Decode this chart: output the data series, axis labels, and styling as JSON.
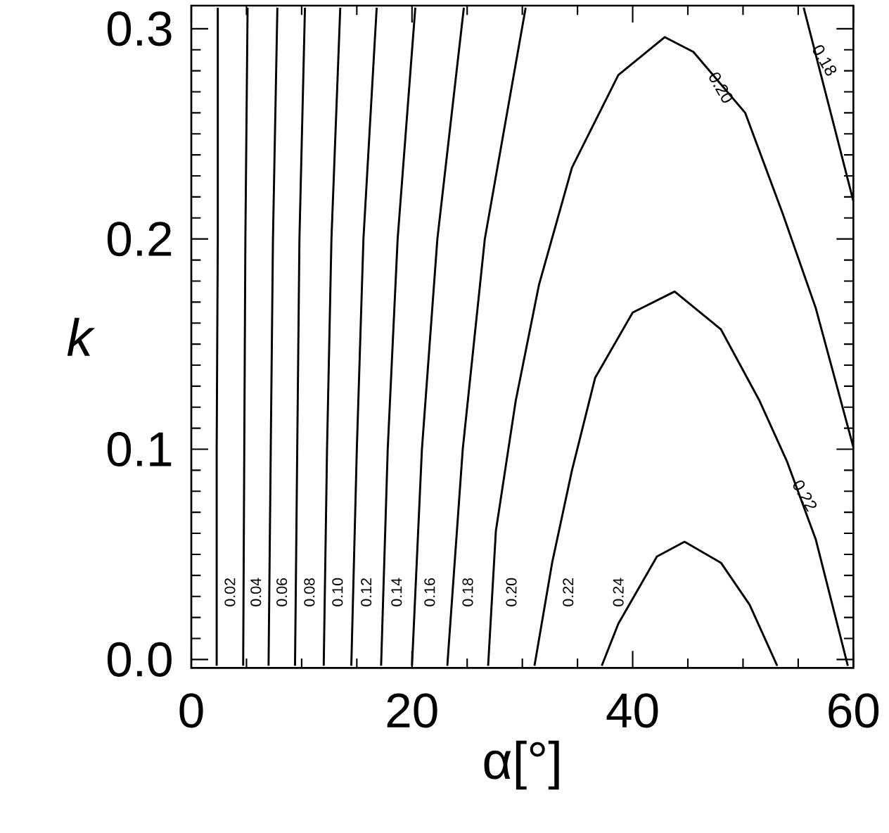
{
  "chart_data": {
    "type": "line",
    "xlabel": "α[°]",
    "ylabel": "k",
    "xlim": [
      0,
      60
    ],
    "ylim": [
      -0.004,
      0.311
    ],
    "xticks": [
      0,
      20,
      40,
      60
    ],
    "yticks": [
      {
        "value": 0,
        "label": "0.0"
      },
      0.1,
      0.2,
      0.3
    ],
    "series": [
      {
        "name": "0.02",
        "color": "#000000",
        "x": [
          2.3,
          2.3,
          2.4,
          2.4
        ],
        "values": [
          -0.003,
          0.1,
          0.2,
          0.31
        ]
      },
      {
        "name": "0.04",
        "color": "#000000",
        "x": [
          4.7,
          4.8,
          4.9,
          5.1
        ],
        "values": [
          -0.003,
          0.1,
          0.2,
          0.31
        ]
      },
      {
        "name": "0.06",
        "color": "#000000",
        "x": [
          7.0,
          7.2,
          7.4,
          7.8
        ],
        "values": [
          -0.003,
          0.1,
          0.2,
          0.31
        ]
      },
      {
        "name": "0.08",
        "color": "#000000",
        "x": [
          9.4,
          9.6,
          9.8,
          10.3
        ],
        "values": [
          -0.003,
          0.1,
          0.2,
          0.31
        ]
      },
      {
        "name": "0.10",
        "color": "#000000",
        "x": [
          12.0,
          12.3,
          12.7,
          13.5
        ],
        "values": [
          -0.003,
          0.1,
          0.2,
          0.31
        ]
      },
      {
        "name": "0.12",
        "color": "#000000",
        "x": [
          14.5,
          15.0,
          15.6,
          16.8
        ],
        "values": [
          -0.003,
          0.1,
          0.2,
          0.31
        ]
      },
      {
        "name": "0.14",
        "color": "#000000",
        "x": [
          17.2,
          17.8,
          18.7,
          20.3
        ],
        "values": [
          -0.003,
          0.1,
          0.2,
          0.31
        ]
      },
      {
        "name": "0.16",
        "color": "#000000",
        "x": [
          20.0,
          20.9,
          22.3,
          24.7
        ],
        "values": [
          -0.003,
          0.1,
          0.2,
          0.31
        ]
      },
      {
        "name": "0.18",
        "color": "#000000",
        "x": [
          23.2,
          24.6,
          26.6,
          30.3,
          null,
          55.5,
          57.8,
          60.0
        ],
        "values": [
          -0.003,
          0.1,
          0.2,
          0.31,
          null,
          0.31,
          0.263,
          0.218
        ]
      },
      {
        "name": "0.20",
        "color": "#000000",
        "x": [
          26.9,
          27.6,
          29.4,
          31.5,
          34.5,
          38.7,
          42.9,
          45.5,
          50.2,
          53.6,
          56.6,
          60.0
        ],
        "values": [
          -0.003,
          0.061,
          0.123,
          0.178,
          0.234,
          0.278,
          0.296,
          0.289,
          0.26,
          0.212,
          0.167,
          0.101
        ]
      },
      {
        "name": "0.22",
        "color": "#000000",
        "x": [
          31.1,
          32.7,
          34.5,
          36.6,
          40.0,
          43.8,
          48.0,
          51.5,
          54.0,
          56.6,
          59.5
        ],
        "values": [
          -0.003,
          0.046,
          0.09,
          0.134,
          0.165,
          0.175,
          0.157,
          0.123,
          0.094,
          0.057,
          -0.003
        ]
      },
      {
        "name": "0.24",
        "color": "#000000",
        "x": [
          37.2,
          38.7,
          42.2,
          44.7,
          48.0,
          50.6,
          53.1
        ],
        "values": [
          -0.003,
          0.017,
          0.049,
          0.056,
          0.046,
          0.026,
          -0.003
        ]
      }
    ],
    "annotations": [
      {
        "text": "0.18",
        "x": 57.4,
        "y": 0.285
      },
      {
        "text": "0.20",
        "x": 48.0,
        "y": 0.272
      },
      {
        "text": "0.22",
        "x": 55.6,
        "y": 0.078
      }
    ]
  }
}
